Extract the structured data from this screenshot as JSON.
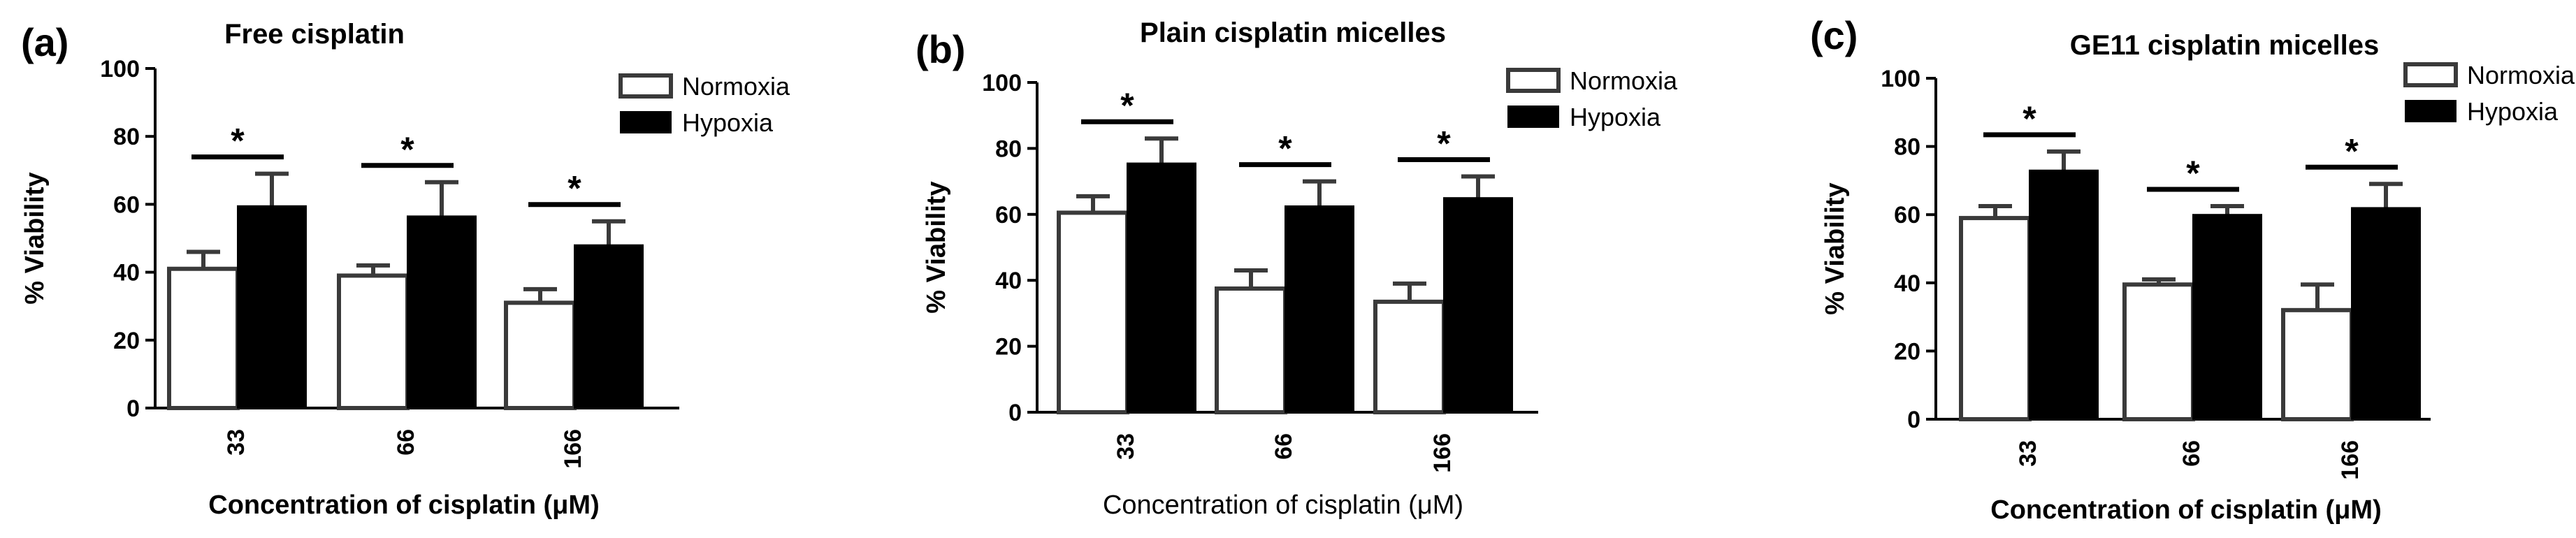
{
  "figure": {
    "legend_labels": [
      "Normoxia",
      "Hypoxia"
    ],
    "colors": {
      "normoxia_fill": "#ffffff",
      "hypoxia_fill": "#000000",
      "stroke": "#3a3a3a"
    }
  },
  "chart_data": [
    {
      "panel": "(a)",
      "type": "bar",
      "title": "Free cisplatin",
      "xlabel": "Concentration of cisplatin (μM)",
      "ylabel": "% Viability",
      "ylim": [
        0,
        100
      ],
      "yticks": [
        "0",
        "20",
        "40",
        "60",
        "80",
        "100"
      ],
      "categories": [
        "33",
        "66",
        "166"
      ],
      "series": [
        {
          "name": "Normoxia",
          "values": [
            41,
            39,
            31
          ],
          "errors": [
            5,
            3,
            4
          ]
        },
        {
          "name": "Hypoxia",
          "values": [
            59.5,
            56.5,
            48
          ],
          "errors": [
            9.5,
            10,
            7
          ]
        }
      ],
      "significance": [
        "*",
        "*",
        "*"
      ],
      "legend_position": "top-right"
    },
    {
      "panel": "(b)",
      "type": "bar",
      "title": "Plain cisplatin micelles",
      "xlabel": "Concentration of cisplatin (μM)",
      "ylabel": "% Viability",
      "ylim": [
        0,
        100
      ],
      "yticks": [
        "0",
        "20",
        "40",
        "60",
        "80",
        "100"
      ],
      "categories": [
        "33",
        "66",
        "166"
      ],
      "series": [
        {
          "name": "Normoxia",
          "values": [
            60.5,
            37.5,
            33.5
          ],
          "errors": [
            5,
            5.5,
            5.5
          ]
        },
        {
          "name": "Hypoxia",
          "values": [
            75.5,
            62.5,
            65
          ],
          "errors": [
            7.5,
            7.5,
            6.5
          ]
        }
      ],
      "significance": [
        "*",
        "*",
        "*"
      ],
      "legend_position": "top-right"
    },
    {
      "panel": "(c)",
      "type": "bar",
      "title": "GE11 cisplatin micelles",
      "xlabel": "Concentration of cisplatin (μM)",
      "ylabel": "% Viability",
      "ylim": [
        0,
        100
      ],
      "yticks": [
        "0",
        "20",
        "40",
        "60",
        "80",
        "100"
      ],
      "categories": [
        "33",
        "66",
        "166"
      ],
      "series": [
        {
          "name": "Normoxia",
          "values": [
            59,
            39.5,
            32
          ],
          "errors": [
            3.5,
            1.5,
            7.5
          ]
        },
        {
          "name": "Hypoxia",
          "values": [
            73,
            60,
            62
          ],
          "errors": [
            5.5,
            2.5,
            7
          ]
        }
      ],
      "significance": [
        "*",
        "*",
        "*"
      ],
      "legend_position": "top-right"
    }
  ]
}
